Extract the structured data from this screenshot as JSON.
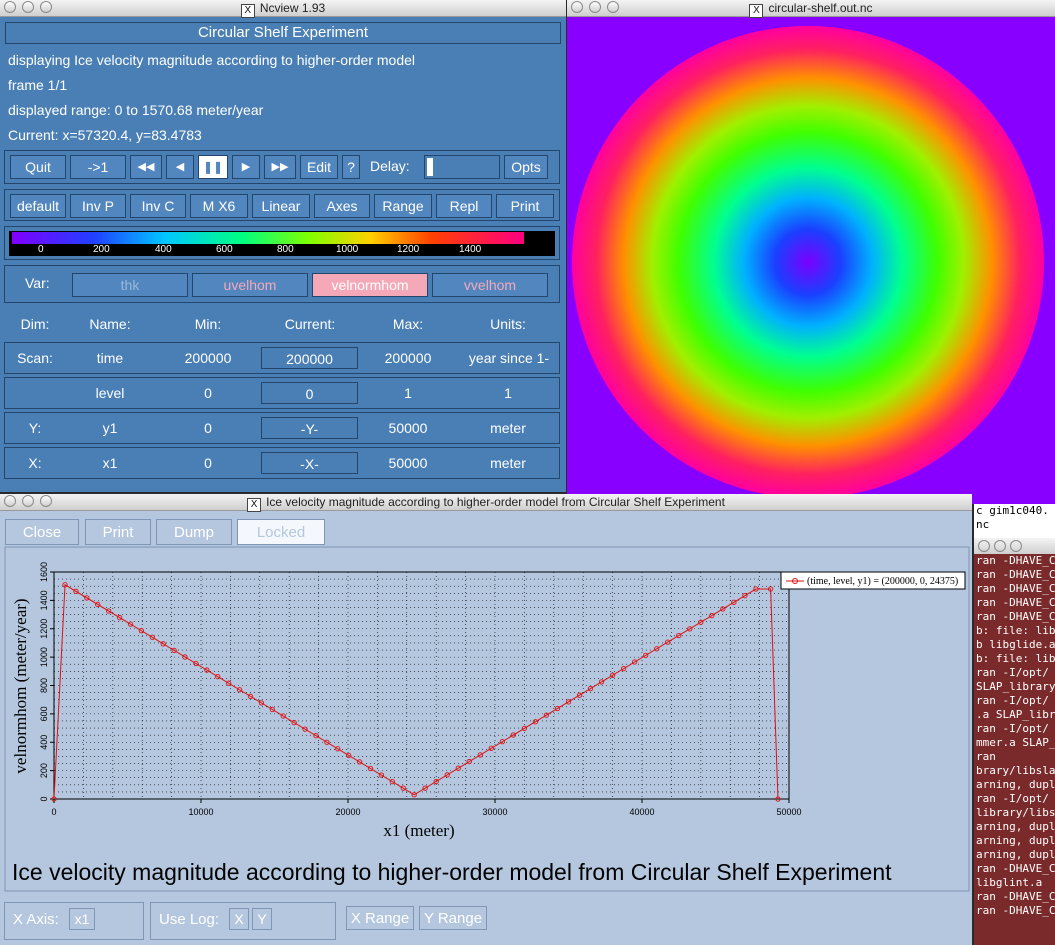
{
  "ncview": {
    "title": "Ncview 1.93",
    "experiment": "Circular Shelf Experiment",
    "displaying": "displaying Ice velocity magnitude according to higher-order model",
    "frame": "frame 1/1",
    "range": "displayed range: 0 to 1570.68 meter/year",
    "current": "Current: x=57320.4, y=83.4783",
    "controls": {
      "quit": "Quit",
      "to1": "->1",
      "rewind": "◀◀",
      "back": "◀",
      "pause": "❚❚",
      "fwd": "▶",
      "ffwd": "▶▶",
      "edit": "Edit",
      "help": "?",
      "delay": "Delay:",
      "opts": "Opts"
    },
    "options": [
      "default",
      "Inv P",
      "Inv C",
      "M X6",
      "Linear",
      "Axes",
      "Range",
      "Repl",
      "Print"
    ],
    "colorbar_ticks": [
      "0",
      "200",
      "400",
      "600",
      "800",
      "1000",
      "1200",
      "1400"
    ],
    "var_label": "Var:",
    "vars": [
      "thk",
      "uvelhom",
      "velnormhom",
      "vvelhom"
    ],
    "dim_headers": [
      "Dim:",
      "Name:",
      "Min:",
      "Current:",
      "Max:",
      "Units:"
    ],
    "dims": [
      {
        "dim": "Scan:",
        "name": "time",
        "min": "200000",
        "current": "200000",
        "max": "200000",
        "units": "year since 1-"
      },
      {
        "dim": "",
        "name": "level",
        "min": "0",
        "current": "0",
        "max": "1",
        "units": "1"
      },
      {
        "dim": "Y:",
        "name": "y1",
        "min": "0",
        "current": "-Y-",
        "max": "50000",
        "units": "meter"
      },
      {
        "dim": "X:",
        "name": "x1",
        "min": "0",
        "current": "-X-",
        "max": "50000",
        "units": "meter"
      }
    ]
  },
  "imagewin": {
    "title": "circular-shelf.out.nc"
  },
  "plotwin": {
    "title": "Ice velocity magnitude according to higher-order model from Circular Shelf Experiment",
    "buttons": [
      "Close",
      "Print",
      "Dump",
      "Locked"
    ],
    "caption": "Ice velocity magnitude according to higher-order model from Circular Shelf Experiment",
    "xaxis_label": "X Axis:",
    "xaxis_value": "x1",
    "uselog_label": "Use Log:",
    "uselog_x": "X",
    "uselog_y": "Y",
    "xrange": "X Range",
    "yrange": "Y Range"
  },
  "chart_data": {
    "type": "line",
    "xlabel": "x1 (meter)",
    "ylabel": "velnormhom (meter/year)",
    "xlim": [
      0,
      50000
    ],
    "ylim": [
      0,
      1600
    ],
    "xticks": [
      "0",
      "10000",
      "20000",
      "30000",
      "40000",
      "50000"
    ],
    "yticks": [
      "0",
      "200",
      "400",
      "600",
      "800",
      "1000",
      "1200",
      "1400",
      "1600"
    ],
    "grid": true,
    "legend_position": "top-right",
    "series": [
      {
        "name": "(time, level, y1) = (200000, 0, 24375)",
        "color": "#dd1111",
        "x": [
          0,
          750,
          24500,
          47750,
          48750,
          49250
        ],
        "y": [
          0,
          1510,
          30,
          1480,
          1480,
          0
        ]
      }
    ]
  },
  "terminal": {
    "lines": [
      "ran -DHAVE_CO",
      "ran -DHAVE_CO",
      "ran -DHAVE_CO",
      "ran -DHAVE_CO",
      "ran -DHAVE_CO",
      "b: file: libg",
      "b libglide.a",
      "b: file: libg",
      "ran   -I/opt/",
      "SLAP_library/l",
      "ran   -I/opt/",
      ".a SLAP_libra",
      "ran   -I/opt/",
      "mmer.a SLAP_l",
      "ran",
      "brary/libslap",
      "arning, dupli",
      "ran   -I/opt/",
      "library/libsl",
      "arning, dupli",
      "arning, dupli",
      "arning, dupli",
      "ran -DHAVE_CO",
      " libglint.a",
      "ran -DHAVE_CO",
      "ran -DHAVE_CO"
    ],
    "behind1": "c gim1c040.",
    "behind2": "nc"
  },
  "colors": {
    "ncview_bg": "#4a7fb6",
    "plot_bg": "#b4c7df",
    "series": "#dd1111",
    "selected_var": "#f5a8b8"
  }
}
